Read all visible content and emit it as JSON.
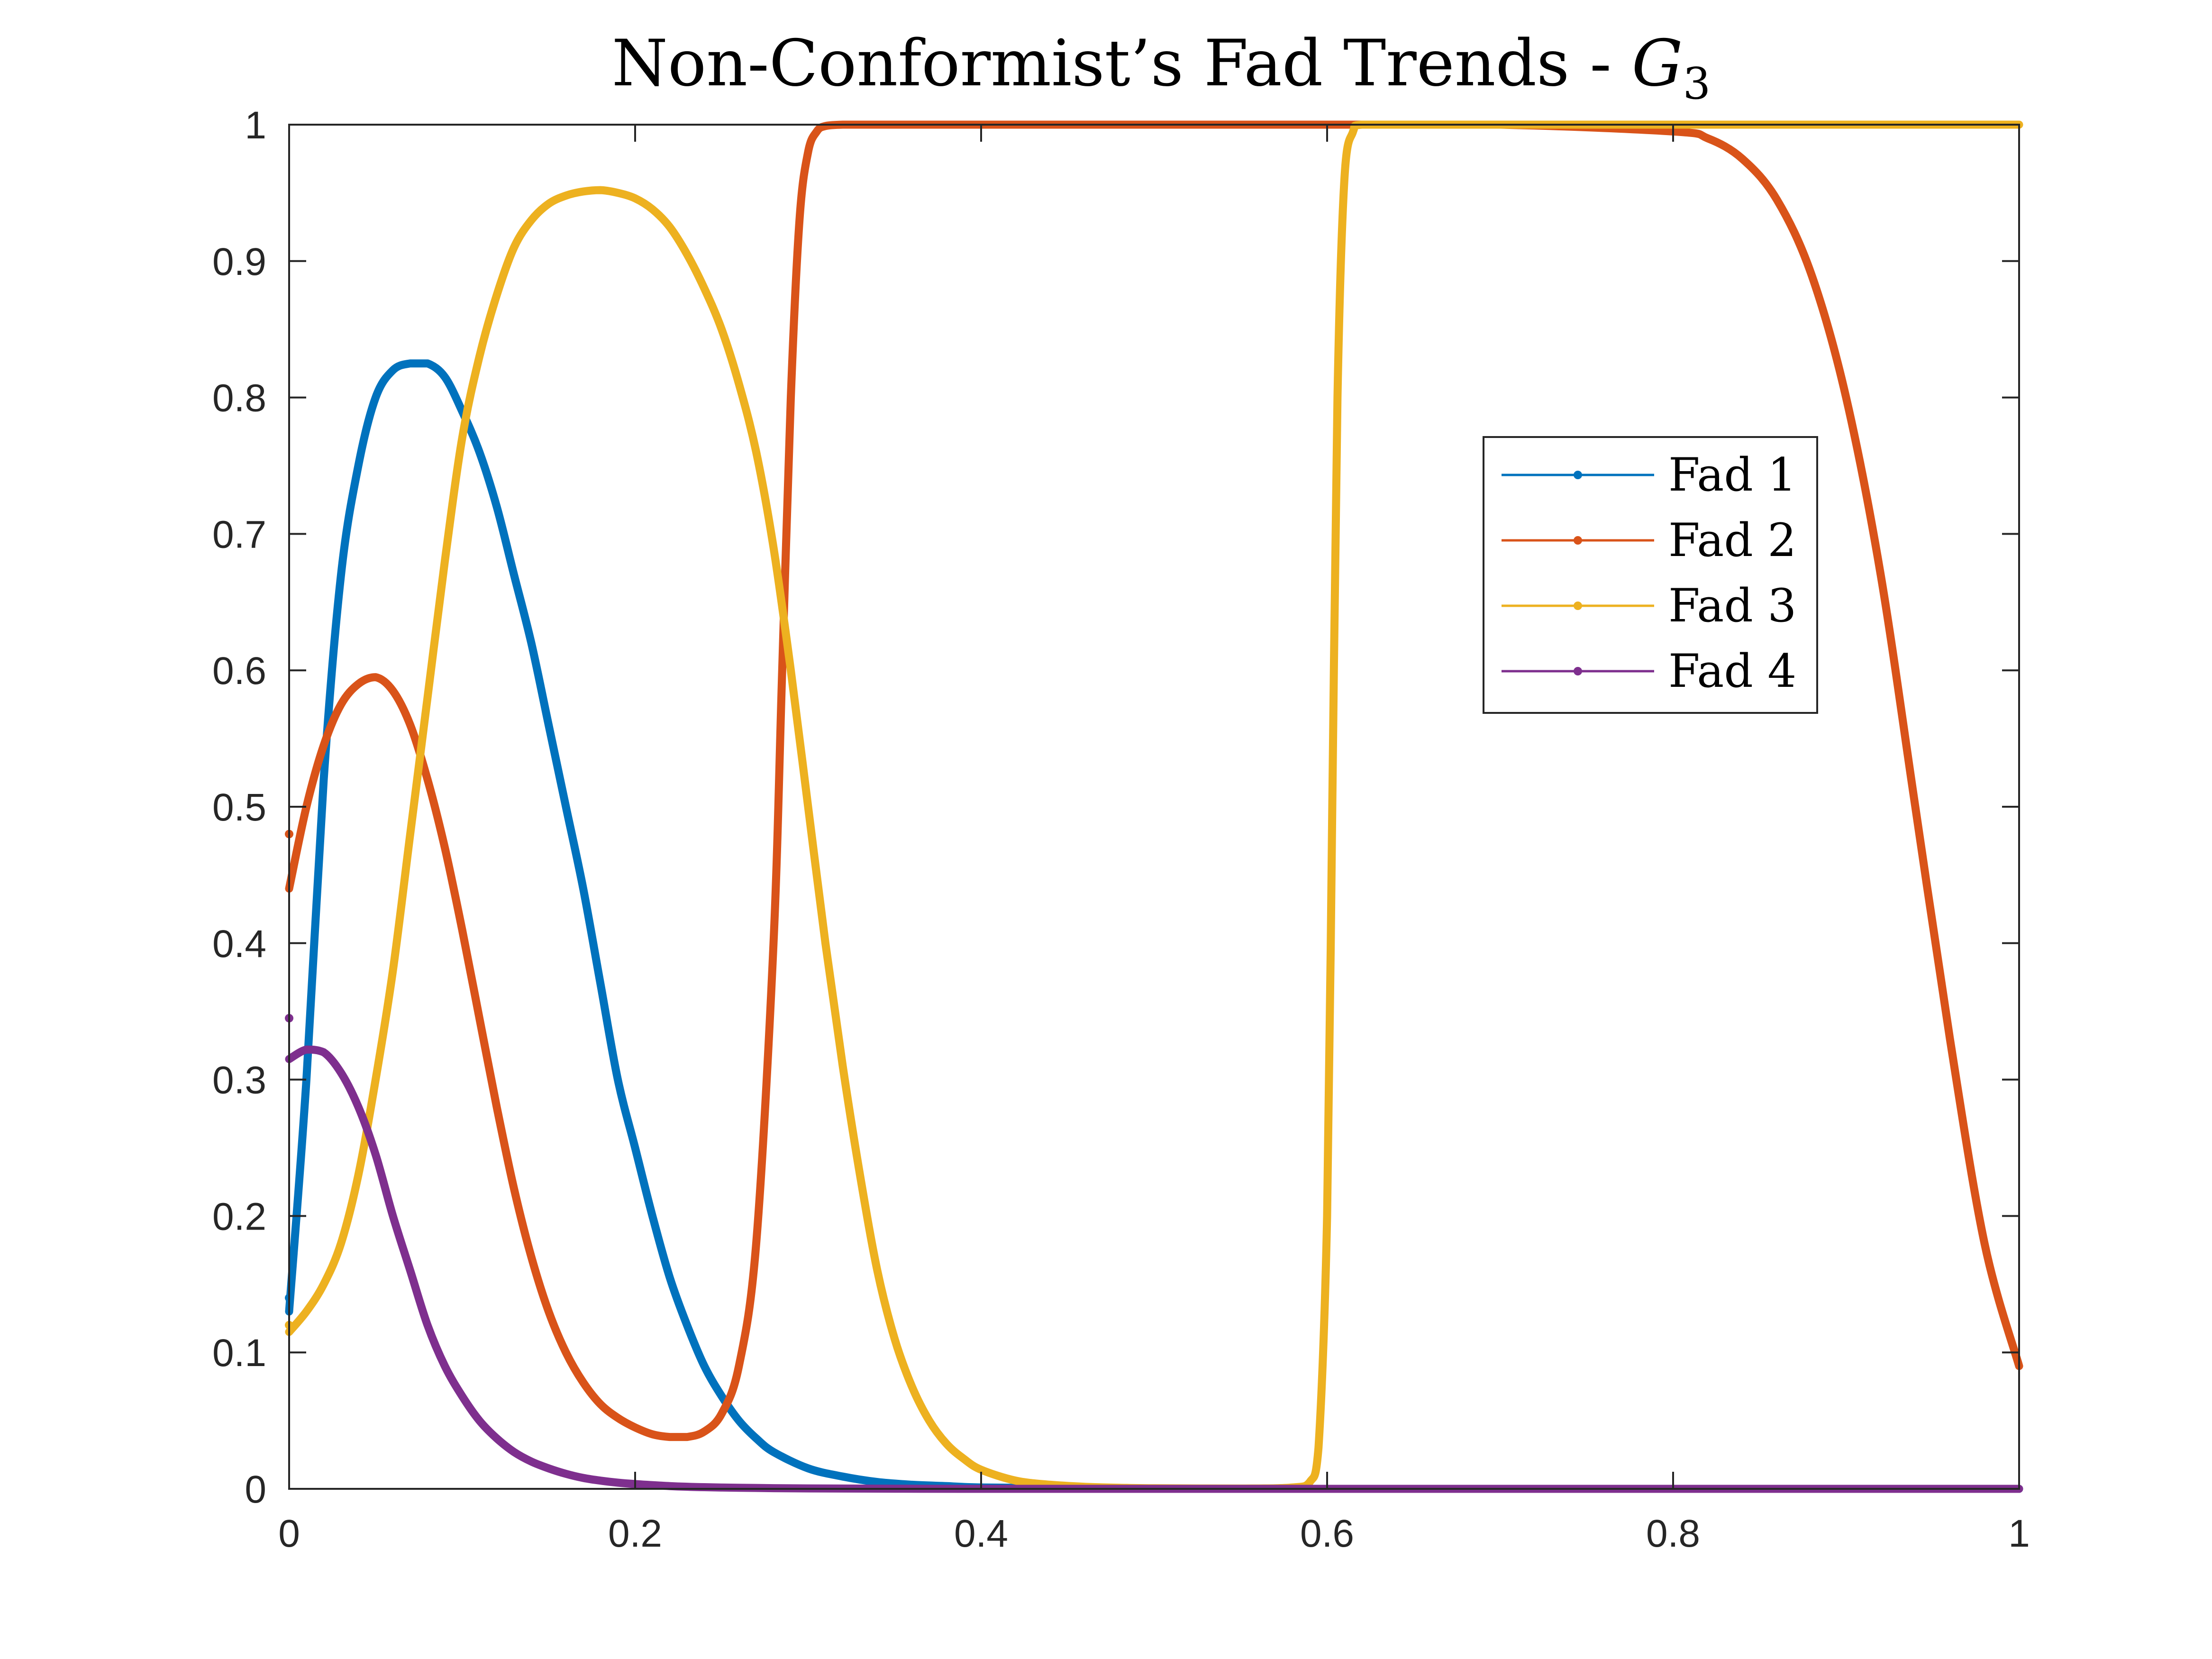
{
  "chart_data": {
    "type": "line",
    "title": "Non-Conformist’s Fad Trends - ",
    "title_math": "G",
    "title_subscript": "3",
    "xlabel": "",
    "ylabel": "",
    "xlim": [
      0,
      1
    ],
    "ylim": [
      0,
      1
    ],
    "xticks": [
      0,
      0.2,
      0.4,
      0.6,
      0.8,
      1
    ],
    "xtick_labels": [
      "0",
      "0.2",
      "0.4",
      "0.6",
      "0.8",
      "1"
    ],
    "yticks": [
      0,
      0.1,
      0.2,
      0.3,
      0.4,
      0.5,
      0.6,
      0.7,
      0.8,
      0.9,
      1
    ],
    "ytick_labels": [
      "0",
      "0.1",
      "0.2",
      "0.3",
      "0.4",
      "0.5",
      "0.6",
      "0.7",
      "0.8",
      "0.9",
      "1"
    ],
    "grid": false,
    "legend_position": "upper-right",
    "series": [
      {
        "name": "Fad 1",
        "color": "#0072BD",
        "start_marker": [
          0,
          0.14
        ],
        "x": [
          0,
          0.01,
          0.02,
          0.03,
          0.04,
          0.05,
          0.06,
          0.07,
          0.08,
          0.09,
          0.1,
          0.11,
          0.12,
          0.13,
          0.14,
          0.15,
          0.16,
          0.17,
          0.18,
          0.19,
          0.2,
          0.21,
          0.22,
          0.23,
          0.24,
          0.25,
          0.26,
          0.27,
          0.28,
          0.3,
          0.32,
          0.34,
          0.36,
          0.38,
          0.4,
          0.45,
          0.5,
          0.6,
          0.7,
          0.8,
          0.9,
          1.0
        ],
        "y": [
          0.13,
          0.3,
          0.52,
          0.67,
          0.75,
          0.8,
          0.82,
          0.825,
          0.825,
          0.815,
          0.79,
          0.76,
          0.72,
          0.67,
          0.62,
          0.56,
          0.5,
          0.44,
          0.37,
          0.3,
          0.25,
          0.2,
          0.155,
          0.12,
          0.09,
          0.068,
          0.05,
          0.037,
          0.027,
          0.015,
          0.009,
          0.005,
          0.003,
          0.002,
          0.001,
          0.0005,
          0.0002,
          0,
          0,
          0,
          0,
          0
        ]
      },
      {
        "name": "Fad 2",
        "color": "#D95319",
        "start_marker": [
          0,
          0.48
        ],
        "x": [
          0,
          0.01,
          0.02,
          0.03,
          0.04,
          0.05,
          0.06,
          0.07,
          0.08,
          0.09,
          0.1,
          0.11,
          0.12,
          0.13,
          0.14,
          0.15,
          0.16,
          0.17,
          0.18,
          0.19,
          0.2,
          0.21,
          0.22,
          0.23,
          0.24,
          0.25,
          0.26,
          0.27,
          0.28,
          0.285,
          0.29,
          0.295,
          0.3,
          0.305,
          0.31,
          0.32,
          0.33,
          0.35,
          0.4,
          0.5,
          0.6,
          0.7,
          0.8,
          0.82,
          0.84,
          0.86,
          0.88,
          0.9,
          0.92,
          0.94,
          0.96,
          0.98,
          1.0
        ],
        "y": [
          0.44,
          0.5,
          0.545,
          0.575,
          0.59,
          0.595,
          0.585,
          0.56,
          0.52,
          0.47,
          0.41,
          0.345,
          0.28,
          0.22,
          0.17,
          0.13,
          0.1,
          0.078,
          0.062,
          0.052,
          0.045,
          0.04,
          0.038,
          0.038,
          0.042,
          0.055,
          0.09,
          0.18,
          0.4,
          0.6,
          0.8,
          0.93,
          0.98,
          0.995,
          0.999,
          1.0,
          1.0,
          1.0,
          1.0,
          1.0,
          1.0,
          1.0,
          0.995,
          0.99,
          0.975,
          0.945,
          0.89,
          0.8,
          0.67,
          0.5,
          0.33,
          0.18,
          0.09
        ]
      },
      {
        "name": "Fad 3",
        "color": "#EDB120",
        "start_marker": [
          0,
          0.12
        ],
        "x": [
          0,
          0.01,
          0.02,
          0.03,
          0.04,
          0.05,
          0.06,
          0.07,
          0.08,
          0.09,
          0.1,
          0.11,
          0.12,
          0.13,
          0.14,
          0.15,
          0.16,
          0.17,
          0.18,
          0.19,
          0.2,
          0.21,
          0.22,
          0.23,
          0.24,
          0.25,
          0.26,
          0.27,
          0.28,
          0.29,
          0.3,
          0.31,
          0.32,
          0.33,
          0.34,
          0.35,
          0.36,
          0.37,
          0.38,
          0.39,
          0.4,
          0.42,
          0.44,
          0.46,
          0.48,
          0.5,
          0.55,
          0.58,
          0.59,
          0.595,
          0.6,
          0.603,
          0.606,
          0.61,
          0.615,
          0.62,
          0.65,
          0.7,
          0.8,
          0.9,
          1.0
        ],
        "y": [
          0.115,
          0.13,
          0.15,
          0.18,
          0.23,
          0.3,
          0.38,
          0.48,
          0.58,
          0.68,
          0.77,
          0.83,
          0.875,
          0.91,
          0.93,
          0.942,
          0.948,
          0.951,
          0.952,
          0.95,
          0.946,
          0.938,
          0.925,
          0.905,
          0.88,
          0.85,
          0.81,
          0.76,
          0.69,
          0.6,
          0.5,
          0.4,
          0.31,
          0.23,
          0.16,
          0.11,
          0.075,
          0.05,
          0.033,
          0.022,
          0.014,
          0.006,
          0.003,
          0.0015,
          0.0008,
          0.0004,
          0.0002,
          0.001,
          0.005,
          0.03,
          0.2,
          0.5,
          0.8,
          0.96,
          0.995,
          1.0,
          1.0,
          1.0,
          1.0,
          1.0,
          1.0
        ]
      },
      {
        "name": "Fad 4",
        "color": "#7E2F8E",
        "start_marker": [
          0,
          0.345
        ],
        "x": [
          0,
          0.01,
          0.02,
          0.03,
          0.04,
          0.05,
          0.06,
          0.07,
          0.08,
          0.09,
          0.1,
          0.11,
          0.12,
          0.13,
          0.14,
          0.15,
          0.16,
          0.17,
          0.18,
          0.19,
          0.2,
          0.22,
          0.24,
          0.26,
          0.28,
          0.3,
          0.35,
          0.4,
          0.5,
          0.6,
          0.7,
          0.8,
          0.9,
          1.0
        ],
        "y": [
          0.315,
          0.322,
          0.32,
          0.305,
          0.28,
          0.245,
          0.2,
          0.16,
          0.12,
          0.09,
          0.068,
          0.05,
          0.037,
          0.027,
          0.02,
          0.015,
          0.011,
          0.008,
          0.006,
          0.0045,
          0.0035,
          0.002,
          0.0012,
          0.0008,
          0.0005,
          0.0003,
          0.0001,
          0,
          0,
          0,
          0,
          0,
          0,
          0
        ]
      }
    ]
  }
}
